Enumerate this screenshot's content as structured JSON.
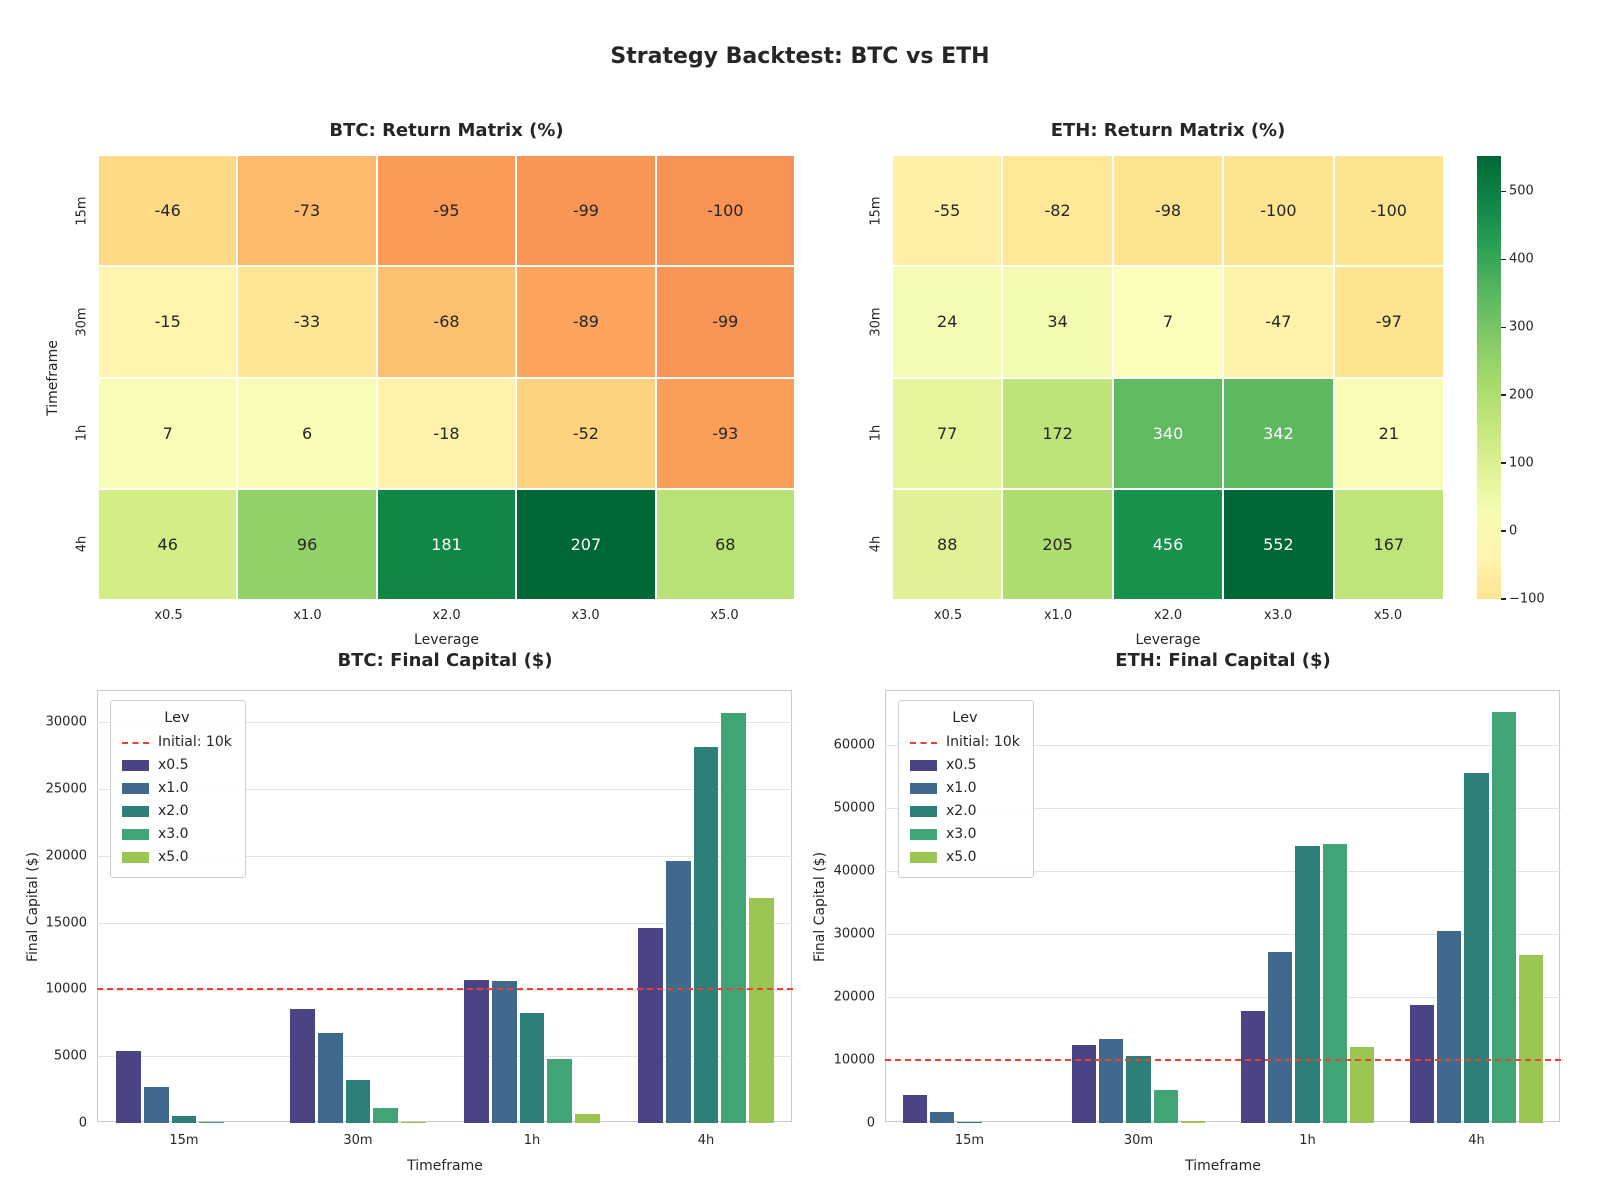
{
  "figure": {
    "title": "Strategy Backtest: BTC vs ETH"
  },
  "style": {
    "text_color": "#262626",
    "heatmap_colormap": "RdYlGn",
    "bar_palette": [
      "#4b4484",
      "#3f6a8e",
      "#2d8078",
      "#40a475",
      "#9cc653"
    ],
    "ref_line_color": "#ee4035"
  },
  "chart_data": [
    {
      "id": "btc-return-matrix",
      "type": "heatmap",
      "title": "BTC: Return Matrix (%)",
      "xlabel": "Leverage",
      "ylabel": "Timeframe",
      "x_categories": [
        "x0.5",
        "x1.0",
        "x2.0",
        "x3.0",
        "x5.0"
      ],
      "y_categories": [
        "15m",
        "30m",
        "1h",
        "4h"
      ],
      "values": [
        [
          -46,
          -73,
          -95,
          -99,
          -100
        ],
        [
          -15,
          -33,
          -68,
          -89,
          -99
        ],
        [
          7,
          6,
          -18,
          -52,
          -93
        ],
        [
          46,
          96,
          181,
          207,
          68
        ]
      ],
      "vmin": -100,
      "vmax": 207,
      "center": 0
    },
    {
      "id": "eth-return-matrix",
      "type": "heatmap",
      "title": "ETH: Return Matrix (%)",
      "xlabel": "Leverage",
      "ylabel": "",
      "x_categories": [
        "x0.5",
        "x1.0",
        "x2.0",
        "x3.0",
        "x5.0"
      ],
      "y_categories": [
        "15m",
        "30m",
        "1h",
        "4h"
      ],
      "values": [
        [
          -55,
          -82,
          -98,
          -100,
          -100
        ],
        [
          24,
          34,
          7,
          -47,
          -97
        ],
        [
          77,
          172,
          340,
          342,
          21
        ],
        [
          88,
          205,
          456,
          552,
          167
        ]
      ],
      "vmin": -100,
      "vmax": 552,
      "center": 0
    },
    {
      "id": "btc-final-capital",
      "type": "bar",
      "title": "BTC: Final Capital ($)",
      "xlabel": "Timeframe",
      "ylabel": "Final Capital ($)",
      "categories": [
        "15m",
        "30m",
        "1h",
        "4h"
      ],
      "series": [
        {
          "name": "x0.5",
          "values": [
            5400,
            8500,
            10700,
            14600
          ]
        },
        {
          "name": "x1.0",
          "values": [
            2700,
            6700,
            10600,
            19600
          ]
        },
        {
          "name": "x2.0",
          "values": [
            500,
            3200,
            8200,
            28100
          ]
        },
        {
          "name": "x3.0",
          "values": [
            100,
            1100,
            4800,
            30700
          ]
        },
        {
          "name": "x5.0",
          "values": [
            0,
            100,
            700,
            16800
          ]
        }
      ],
      "yticks": [
        0,
        5000,
        10000,
        15000,
        20000,
        25000,
        30000
      ],
      "ylim": [
        0,
        32400
      ],
      "ref_line": {
        "value": 10000,
        "label": "Initial: 10k"
      },
      "legend_title": "Lev",
      "legend_position": "upper left",
      "grid": true
    },
    {
      "id": "eth-final-capital",
      "type": "bar",
      "title": "ETH: Final Capital ($)",
      "xlabel": "Timeframe",
      "ylabel": "Final Capital ($)",
      "categories": [
        "15m",
        "30m",
        "1h",
        "4h"
      ],
      "series": [
        {
          "name": "x0.5",
          "values": [
            4500,
            12400,
            17700,
            18800
          ]
        },
        {
          "name": "x1.0",
          "values": [
            1800,
            13400,
            27200,
            30500
          ]
        },
        {
          "name": "x2.0",
          "values": [
            200,
            10700,
            44000,
            55600
          ]
        },
        {
          "name": "x3.0",
          "values": [
            0,
            5300,
            44200,
            65200
          ]
        },
        {
          "name": "x5.0",
          "values": [
            0,
            300,
            12100,
            26700
          ]
        }
      ],
      "yticks": [
        0,
        10000,
        20000,
        30000,
        40000,
        50000,
        60000
      ],
      "ylim": [
        0,
        68700
      ],
      "ref_line": {
        "value": 10000,
        "label": "Initial: 10k"
      },
      "legend_title": "Lev",
      "legend_position": "upper left",
      "grid": true
    }
  ],
  "colorbar": {
    "vmin": -100,
    "vmax": 552,
    "ticks": [
      {
        "value": 500,
        "label": "500"
      },
      {
        "value": 400,
        "label": "400"
      },
      {
        "value": 300,
        "label": "300"
      },
      {
        "value": 200,
        "label": "200"
      },
      {
        "value": 100,
        "label": "100"
      },
      {
        "value": 0,
        "label": "0"
      },
      {
        "value": -100,
        "label": "−100"
      }
    ]
  }
}
